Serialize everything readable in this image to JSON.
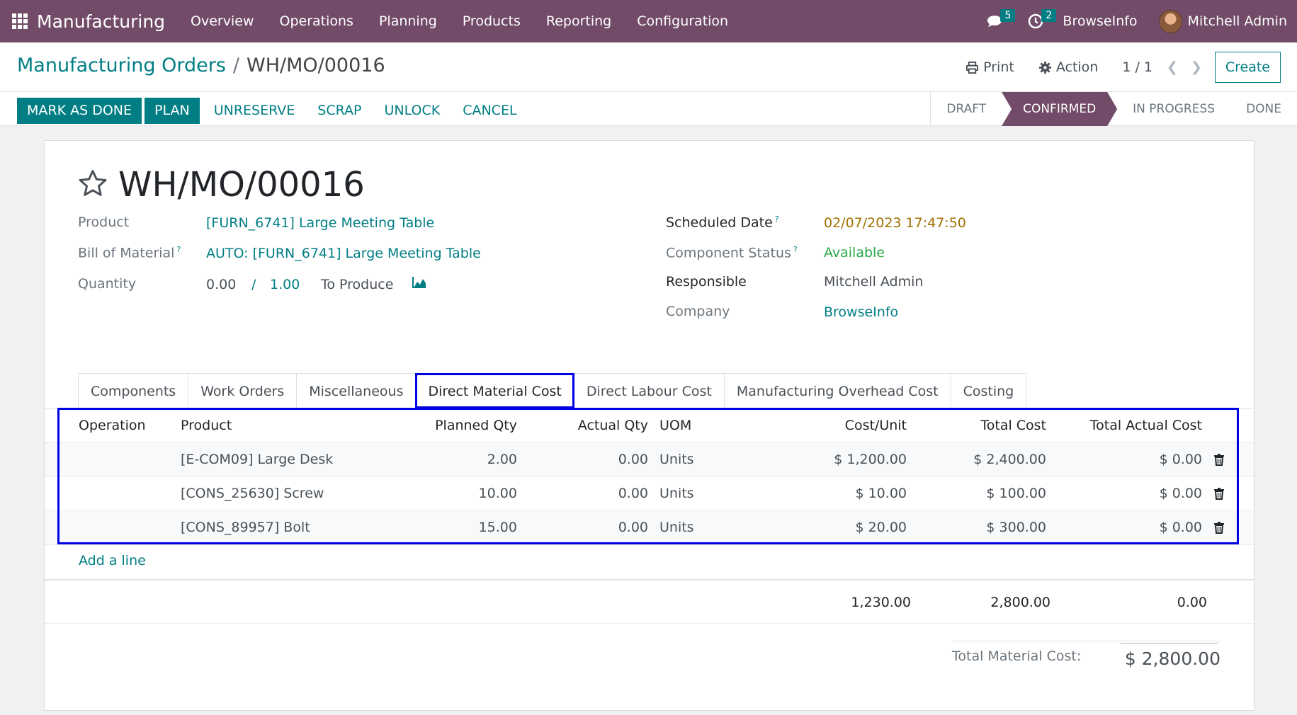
{
  "navbar": {
    "app_name": "Manufacturing",
    "menu": [
      "Overview",
      "Operations",
      "Planning",
      "Products",
      "Reporting",
      "Configuration"
    ],
    "messages_count": "5",
    "activities_count": "2",
    "company": "BrowseInfo",
    "user": "Mitchell Admin",
    "color": "#714b67"
  },
  "breadcrumb": {
    "parent": "Manufacturing Orders",
    "separator": "/",
    "current": "WH/MO/00016"
  },
  "control": {
    "print_label": "Print",
    "action_label": "Action",
    "pager": "1 / 1",
    "create_label": "Create"
  },
  "buttons": {
    "mark_done": "MARK AS DONE",
    "plan": "PLAN",
    "unreserve": "UNRESERVE",
    "scrap": "SCRAP",
    "unlock": "UNLOCK",
    "cancel": "CANCEL"
  },
  "status": {
    "stages": [
      "DRAFT",
      "CONFIRMED",
      "IN PROGRESS",
      "DONE"
    ],
    "active": "CONFIRMED"
  },
  "form": {
    "title": "WH/MO/00016",
    "product_label": "Product",
    "product_value": "[FURN_6741] Large Meeting Table",
    "bom_label": "Bill of Material",
    "bom_value": "AUTO: [FURN_6741] Large Meeting Table",
    "qty_label": "Quantity",
    "qty_done": "0.00",
    "qty_sep": "/",
    "qty_total": "1.00",
    "qty_suffix": "To Produce",
    "scheduled_label": "Scheduled Date",
    "scheduled_value": "02/07/2023 17:47:50",
    "component_status_label": "Component Status",
    "component_status_value": "Available",
    "responsible_label": "Responsible",
    "responsible_value": "Mitchell Admin",
    "company_label": "Company",
    "company_value": "BrowseInfo",
    "help_mark": "?"
  },
  "tabs": [
    "Components",
    "Work Orders",
    "Miscellaneous",
    "Direct Material Cost",
    "Direct Labour Cost",
    "Manufacturing Overhead Cost",
    "Costing"
  ],
  "active_tab": "Direct Material Cost",
  "table": {
    "headers": [
      "Operation",
      "Product",
      "Planned Qty",
      "Actual Qty",
      "UOM",
      "Cost/Unit",
      "Total Cost",
      "Total Actual Cost"
    ],
    "rows": [
      [
        "",
        "[E-COM09] Large Desk",
        "2.00",
        "0.00",
        "Units",
        "$ 1,200.00",
        "$ 2,400.00",
        "$ 0.00"
      ],
      [
        "",
        "[CONS_25630] Screw",
        "10.00",
        "0.00",
        "Units",
        "$ 10.00",
        "$ 100.00",
        "$ 0.00"
      ],
      [
        "",
        "[CONS_89957] Bolt",
        "15.00",
        "0.00",
        "Units",
        "$ 20.00",
        "$ 300.00",
        "$ 0.00"
      ]
    ],
    "add_line": "Add a line",
    "totals": {
      "cost_unit": "1,230.00",
      "total_cost": "2,800.00",
      "total_actual": "0.00"
    }
  },
  "material_total": {
    "label": "Total Material Cost:",
    "value": "$ 2,800.00"
  }
}
